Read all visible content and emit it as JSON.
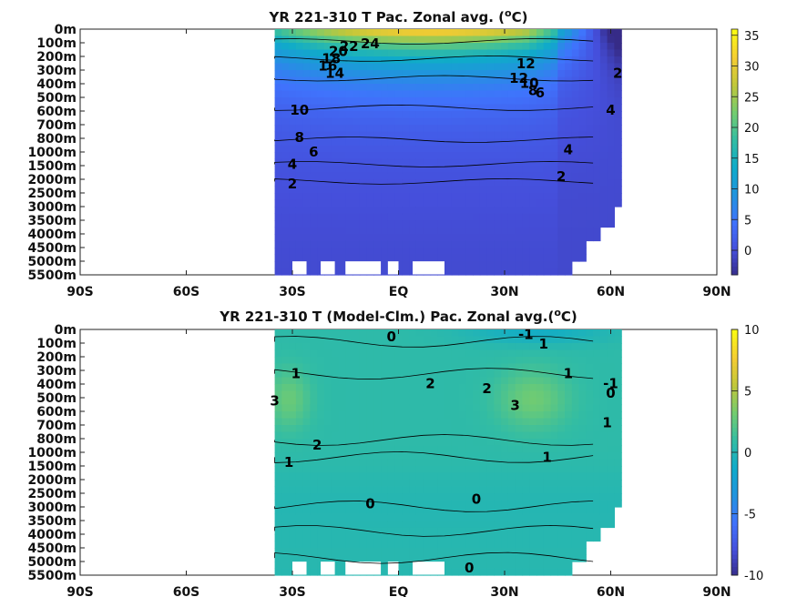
{
  "chart_data": [
    {
      "type": "heatmap",
      "title_main": "YR 221-310 T Pac. Zonal avg. (",
      "title_sup": "o",
      "title_end": "C)",
      "x_ticks": [
        "90S",
        "60S",
        "30S",
        "EQ",
        "30N",
        "60N",
        "90N"
      ],
      "x_values": [
        -90,
        -60,
        -30,
        0,
        30,
        60,
        90
      ],
      "y_ticks": [
        "0m",
        "100m",
        "200m",
        "300m",
        "400m",
        "500m",
        "600m",
        "700m",
        "800m",
        "1000m",
        "1500m",
        "2000m",
        "2500m",
        "3000m",
        "3500m",
        "4000m",
        "4500m",
        "5000m",
        "5500m"
      ],
      "colorbar": {
        "range": [
          -4,
          36
        ],
        "ticks": [
          "35",
          "30",
          "25",
          "20",
          "15",
          "10",
          "5",
          "0"
        ],
        "tick_values": [
          35,
          30,
          25,
          20,
          15,
          10,
          5,
          0
        ]
      },
      "contour_labels": [
        "24",
        "22",
        "20",
        "18",
        "16",
        "14",
        "12",
        "10",
        "8",
        "6",
        "4",
        "2",
        "12",
        "10",
        "8",
        "6",
        "2",
        "4",
        "4",
        "2"
      ],
      "ocean_lon_range": [
        -35,
        62
      ]
    },
    {
      "type": "heatmap",
      "title_main": "YR 221-310 T (Model-Clm.) Pac. Zonal avg.(",
      "title_sup": "o",
      "title_end": "C)",
      "x_ticks": [
        "90S",
        "60S",
        "30S",
        "EQ",
        "30N",
        "60N",
        "90N"
      ],
      "x_values": [
        -90,
        -60,
        -30,
        0,
        30,
        60,
        90
      ],
      "y_ticks": [
        "0m",
        "100m",
        "200m",
        "300m",
        "400m",
        "500m",
        "600m",
        "700m",
        "800m",
        "1000m",
        "1500m",
        "2000m",
        "2500m",
        "3000m",
        "3500m",
        "4000m",
        "4500m",
        "5000m",
        "5500m"
      ],
      "colorbar": {
        "range": [
          -10,
          10
        ],
        "ticks": [
          "10",
          "5",
          "0",
          "-5",
          "-10"
        ],
        "tick_values": [
          10,
          5,
          0,
          -5,
          -10
        ]
      },
      "contour_labels": [
        "0",
        "-1",
        "1",
        "1",
        "3",
        "2",
        "2",
        "3",
        "1",
        "-1",
        "0",
        "1",
        "2",
        "1",
        "1",
        "0",
        "0",
        "0"
      ],
      "ocean_lon_range": [
        -35,
        62
      ]
    }
  ]
}
